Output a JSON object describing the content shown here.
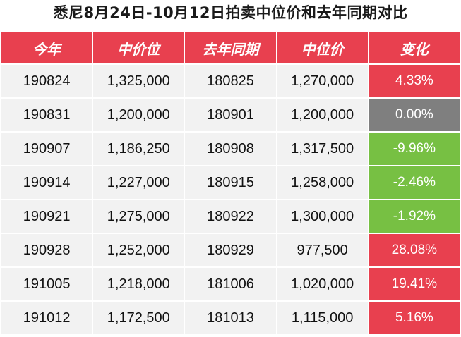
{
  "title": "悉尼8月24日-10月12日拍卖中位价和去年同期对比",
  "headers": [
    "今年",
    "中价位",
    "去年同期",
    "中位价",
    "变化"
  ],
  "colors": {
    "header": "#e8404f",
    "increase": "#e8404f",
    "no_change": "#7f7f7f",
    "decrease": "#77c043",
    "cell": "#f2f2f2"
  },
  "rows": [
    {
      "this_year": "190824",
      "this_price": "1,325,000",
      "last_year": "180825",
      "last_price": "1,270,000",
      "change": "4.33%",
      "trend": "up"
    },
    {
      "this_year": "190831",
      "this_price": "1,200,000",
      "last_year": "180901",
      "last_price": "1,200,000",
      "change": "0.00%",
      "trend": "flat"
    },
    {
      "this_year": "190907",
      "this_price": "1,186,250",
      "last_year": "180908",
      "last_price": "1,317,500",
      "change": "-9.96%",
      "trend": "down"
    },
    {
      "this_year": "190914",
      "this_price": "1,227,000",
      "last_year": "180915",
      "last_price": "1,258,000",
      "change": "-2.46%",
      "trend": "down"
    },
    {
      "this_year": "190921",
      "this_price": "1,275,000",
      "last_year": "180922",
      "last_price": "1,300,000",
      "change": "-1.92%",
      "trend": "down"
    },
    {
      "this_year": "190928",
      "this_price": "1,252,000",
      "last_year": "180929",
      "last_price": "977,500",
      "change": "28.08%",
      "trend": "up"
    },
    {
      "this_year": "191005",
      "this_price": "1,218,000",
      "last_year": "181006",
      "last_price": "1,020,000",
      "change": "19.41%",
      "trend": "up"
    },
    {
      "this_year": "191012",
      "this_price": "1,172,500",
      "last_year": "181013",
      "last_price": "1,115,000",
      "change": "5.16%",
      "trend": "up"
    }
  ]
}
